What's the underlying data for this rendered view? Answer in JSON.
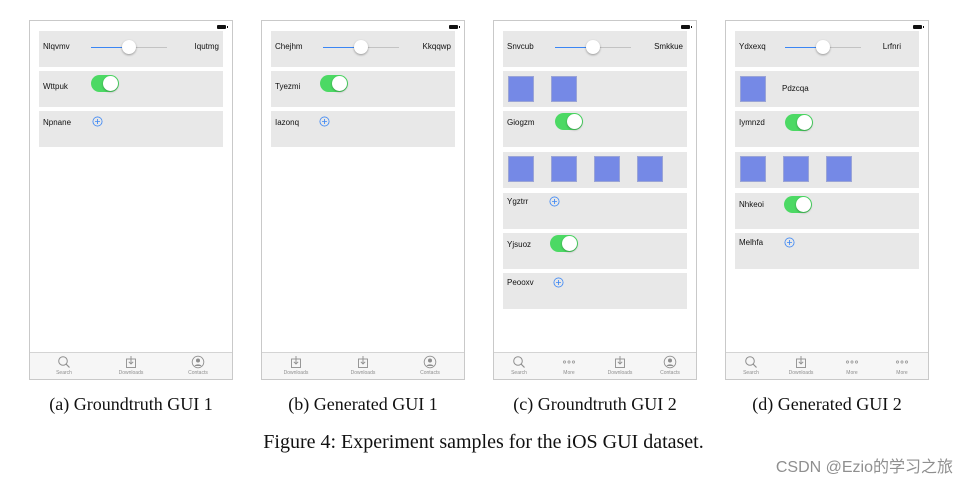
{
  "figure_caption": "Figure 4: Experiment samples for the iOS GUI dataset.",
  "watermark": "CSDN @Ezio的学习之旅",
  "colors": {
    "switch_on": "#4cd964",
    "accent": "#3b86f4",
    "image_fill": "#7589e6",
    "row_bg": "#e8e8e8"
  },
  "panels": {
    "a": {
      "caption": "(a) Groundtruth GUI 1",
      "slider": {
        "left": "Nlqvmv",
        "right": "Iqutmg",
        "value": 0.5
      },
      "switch_label": "Wttpuk",
      "add_label": "Npnane",
      "tabs": [
        "Search",
        "Downloads",
        "Contacts"
      ]
    },
    "b": {
      "caption": "(b) Generated GUI 1",
      "slider": {
        "left": "Chejhm",
        "right": "Kkqqwp",
        "value": 0.5
      },
      "switch_label": "Tyezmi",
      "add_label": "Iazonq",
      "tabs": [
        "Downloads",
        "Downloads",
        "Contacts"
      ]
    },
    "c": {
      "caption": "(c) Groundtruth GUI 2",
      "slider": {
        "left": "Snvcub",
        "right": "Smkkue",
        "value": 0.5
      },
      "switch1_label": "Giogzm",
      "add1_label": "Ygztrr",
      "switch2_label": "Yjsuoz",
      "add2_label": "Peooxv",
      "tabs": [
        "Search",
        "More",
        "Downloads",
        "Contacts"
      ]
    },
    "d": {
      "caption": "(d) Generated GUI 2",
      "slider": {
        "left": "Ydxexq",
        "right": "Lrfnri",
        "value": 0.5
      },
      "image_label": "Pdzcqa",
      "switch1_label": "Iymnzd",
      "switch2_label": "Nhkeoi",
      "add_label": "Melhfa",
      "tabs": [
        "Search",
        "Downloads",
        "More",
        "More"
      ]
    }
  }
}
